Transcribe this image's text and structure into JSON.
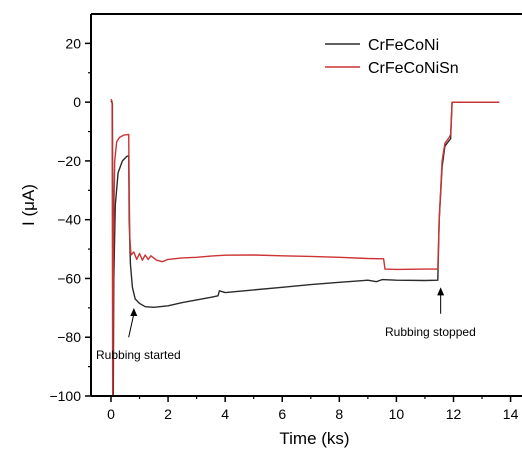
{
  "chart_data": {
    "type": "line",
    "title": "",
    "xlabel": "Time (ks)",
    "ylabel": "I (μA)",
    "xlim": [
      -0.7,
      14.4
    ],
    "ylim": [
      -100,
      30
    ],
    "xticks": [
      0,
      2,
      4,
      6,
      8,
      10,
      12,
      14
    ],
    "yticks": [
      20,
      0,
      -20,
      -40,
      -60,
      -80,
      -100
    ],
    "grid": false,
    "legend_position": "top-right",
    "series": [
      {
        "name": "CrFeCoNi",
        "color": "#2b2b2b",
        "points": [
          [
            0.0,
            0.5
          ],
          [
            0.05,
            -0.5
          ],
          [
            0.08,
            -100
          ],
          [
            0.1,
            -60
          ],
          [
            0.15,
            -35
          ],
          [
            0.25,
            -24
          ],
          [
            0.4,
            -20
          ],
          [
            0.55,
            -18.5
          ],
          [
            0.62,
            -18.2
          ],
          [
            0.64,
            -40
          ],
          [
            0.68,
            -55
          ],
          [
            0.75,
            -63
          ],
          [
            0.85,
            -67
          ],
          [
            1.0,
            -68.5
          ],
          [
            1.2,
            -69.6
          ],
          [
            1.5,
            -69.8
          ],
          [
            2.0,
            -69.3
          ],
          [
            2.5,
            -68.2
          ],
          [
            3.0,
            -67.3
          ],
          [
            3.5,
            -66.4
          ],
          [
            3.75,
            -65.9
          ],
          [
            3.8,
            -64.2
          ],
          [
            4.0,
            -64.8
          ],
          [
            5.0,
            -63.9
          ],
          [
            6.0,
            -63.0
          ],
          [
            7.0,
            -62.1
          ],
          [
            8.0,
            -61.3
          ],
          [
            8.6,
            -60.9
          ],
          [
            9.0,
            -60.6
          ],
          [
            9.3,
            -61.1
          ],
          [
            9.5,
            -60.4
          ],
          [
            10.0,
            -60.6
          ],
          [
            11.0,
            -60.7
          ],
          [
            11.45,
            -60.6
          ],
          [
            11.5,
            -40
          ],
          [
            11.6,
            -22
          ],
          [
            11.7,
            -15
          ],
          [
            11.85,
            -13
          ],
          [
            11.9,
            -12.5
          ],
          [
            11.95,
            0
          ],
          [
            13.6,
            0
          ]
        ]
      },
      {
        "name": "CrFeCoNiSn",
        "color": "#cc3333",
        "points": [
          [
            0.0,
            1.0
          ],
          [
            0.04,
            0.2
          ],
          [
            0.06,
            -100
          ],
          [
            0.09,
            -45
          ],
          [
            0.13,
            -20
          ],
          [
            0.2,
            -13.5
          ],
          [
            0.3,
            -12
          ],
          [
            0.45,
            -11.2
          ],
          [
            0.62,
            -11
          ],
          [
            0.64,
            -30
          ],
          [
            0.66,
            -46
          ],
          [
            0.7,
            -52
          ],
          [
            0.8,
            -51
          ],
          [
            0.9,
            -53.5
          ],
          [
            1.0,
            -51.5
          ],
          [
            1.1,
            -53.8
          ],
          [
            1.2,
            -52
          ],
          [
            1.3,
            -53.5
          ],
          [
            1.4,
            -52.3
          ],
          [
            1.6,
            -53.8
          ],
          [
            1.8,
            -54.3
          ],
          [
            2.0,
            -53.5
          ],
          [
            2.5,
            -53.0
          ],
          [
            3.0,
            -52.8
          ],
          [
            3.5,
            -52.4
          ],
          [
            4.0,
            -52.1
          ],
          [
            5.0,
            -52.0
          ],
          [
            6.0,
            -52.3
          ],
          [
            7.0,
            -52.5
          ],
          [
            8.0,
            -52.8
          ],
          [
            9.0,
            -53.2
          ],
          [
            9.55,
            -53.3
          ],
          [
            9.6,
            -56.8
          ],
          [
            10.0,
            -56.9
          ],
          [
            11.0,
            -56.8
          ],
          [
            11.45,
            -56.8
          ],
          [
            11.5,
            -40
          ],
          [
            11.6,
            -20
          ],
          [
            11.7,
            -14
          ],
          [
            11.85,
            -12
          ],
          [
            11.9,
            -11
          ],
          [
            11.95,
            0
          ],
          [
            13.6,
            0
          ]
        ]
      }
    ],
    "annotations": [
      {
        "text": "Rubbing started",
        "arrow_to": [
          0.8,
          -68
        ]
      },
      {
        "text": "Rubbing stopped",
        "arrow_to": [
          11.55,
          -61
        ]
      }
    ]
  }
}
